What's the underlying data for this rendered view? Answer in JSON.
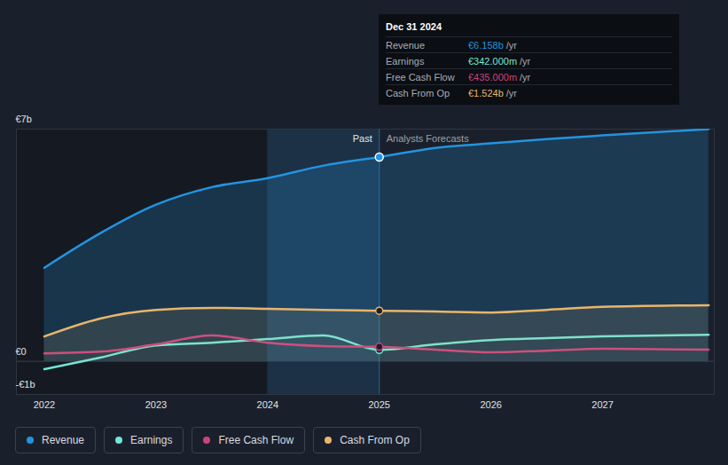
{
  "chart_data": {
    "type": "line",
    "x": [
      2022,
      2022.5,
      2023,
      2023.5,
      2024,
      2024.5,
      2025,
      2025.5,
      2026,
      2026.5,
      2027,
      2027.95
    ],
    "xlim": [
      2021.75,
      2028
    ],
    "xticks": [
      2022,
      2023,
      2024,
      2025,
      2026,
      2027
    ],
    "ylim": [
      -1,
      7
    ],
    "yticks": [
      {
        "value": -1,
        "label": "-€1b"
      },
      {
        "value": 0,
        "label": "€0"
      },
      {
        "value": 7,
        "label": "€7b"
      }
    ],
    "grid": true,
    "legend": "bottom",
    "series": [
      {
        "name": "Revenue",
        "color": "#2394df",
        "type": "area",
        "values": [
          2.82,
          3.86,
          4.72,
          5.25,
          5.52,
          5.9,
          6.158,
          6.43,
          6.57,
          6.7,
          6.81,
          7.0
        ]
      },
      {
        "name": "Earnings",
        "color": "#71e7d6",
        "type": "line",
        "values": [
          -0.24,
          0.11,
          0.48,
          0.56,
          0.67,
          0.78,
          0.342,
          0.51,
          0.64,
          0.7,
          0.75,
          0.8
        ]
      },
      {
        "name": "Free Cash Flow",
        "color": "#c9437f",
        "type": "line",
        "values": [
          0.24,
          0.29,
          0.51,
          0.78,
          0.56,
          0.46,
          0.435,
          0.35,
          0.27,
          0.32,
          0.38,
          0.35
        ]
      },
      {
        "name": "Cash From Op",
        "color": "#e9b56c",
        "type": "area",
        "values": [
          0.75,
          1.29,
          1.55,
          1.61,
          1.58,
          1.55,
          1.524,
          1.5,
          1.47,
          1.55,
          1.64,
          1.69
        ]
      }
    ],
    "annotations": {
      "past_label": "Past",
      "forecast_label": "Analysts Forecasts",
      "forecast_start": 2025,
      "highlight": [
        2024,
        2025
      ]
    },
    "tooltip": {
      "title": "Dec 31 2024",
      "x": 2025,
      "unit": "/yr",
      "rows": [
        {
          "name": "Revenue",
          "value": 6.158,
          "label": "€6.158b"
        },
        {
          "name": "Earnings",
          "value": 0.342,
          "label": "€342.000m"
        },
        {
          "name": "Free Cash Flow",
          "value": 0.435,
          "label": "€435.000m"
        },
        {
          "name": "Cash From Op",
          "value": 1.524,
          "label": "€1.524b"
        }
      ]
    }
  }
}
